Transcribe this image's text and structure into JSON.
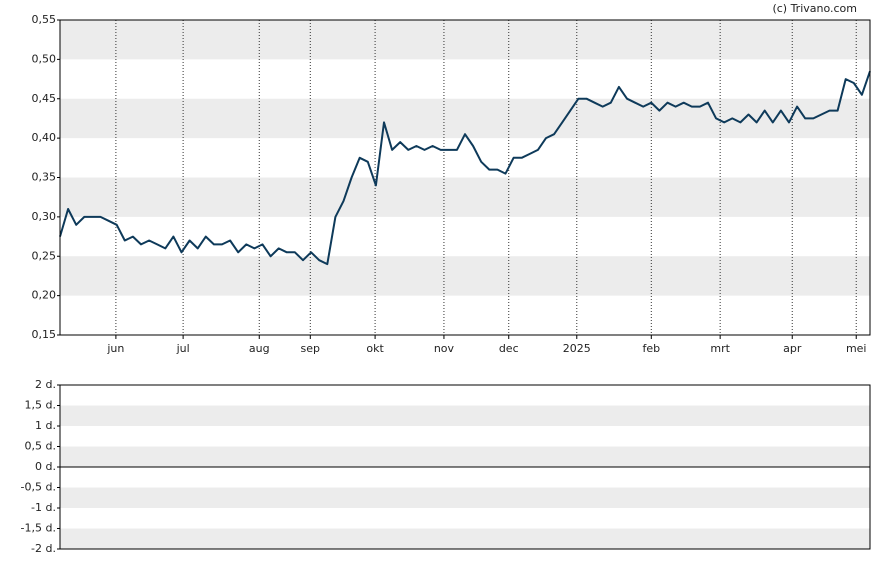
{
  "credit": "(c) Trivano.com",
  "chart_data": [
    {
      "type": "line",
      "xlim": [
        0,
        100
      ],
      "xticks": [
        {
          "value": 6.9,
          "label": "jun"
        },
        {
          "value": 15.2,
          "label": "jul"
        },
        {
          "value": 24.6,
          "label": "aug"
        },
        {
          "value": 30.9,
          "label": "sep"
        },
        {
          "value": 38.9,
          "label": "okt"
        },
        {
          "value": 47.4,
          "label": "nov"
        },
        {
          "value": 55.4,
          "label": "dec"
        },
        {
          "value": 63.8,
          "label": "2025"
        },
        {
          "value": 73,
          "label": "feb"
        },
        {
          "value": 81.5,
          "label": "mrt"
        },
        {
          "value": 90.4,
          "label": "apr"
        },
        {
          "value": 98.3,
          "label": "mei"
        }
      ],
      "ylim": [
        0.15,
        0.55
      ],
      "yticks": [
        {
          "value": 0.15,
          "label": "0,15"
        },
        {
          "value": 0.2,
          "label": "0,20"
        },
        {
          "value": 0.25,
          "label": "0,25"
        },
        {
          "value": 0.3,
          "label": "0,30"
        },
        {
          "value": 0.35,
          "label": "0,35"
        },
        {
          "value": 0.4,
          "label": "0,40"
        },
        {
          "value": 0.45,
          "label": "0,45"
        },
        {
          "value": 0.5,
          "label": "0,50"
        },
        {
          "value": 0.55,
          "label": "0,55"
        }
      ],
      "series": [
        {
          "color": "#0e3a5a",
          "values": [
            0.275,
            0.31,
            0.29,
            0.3,
            0.3,
            0.3,
            0.295,
            0.29,
            0.27,
            0.275,
            0.265,
            0.27,
            0.265,
            0.26,
            0.275,
            0.255,
            0.27,
            0.26,
            0.275,
            0.265,
            0.265,
            0.27,
            0.255,
            0.265,
            0.26,
            0.265,
            0.25,
            0.26,
            0.255,
            0.255,
            0.245,
            0.255,
            0.245,
            0.24,
            0.3,
            0.32,
            0.35,
            0.375,
            0.37,
            0.34,
            0.42,
            0.385,
            0.395,
            0.385,
            0.39,
            0.385,
            0.39,
            0.385,
            0.385,
            0.385,
            0.405,
            0.39,
            0.37,
            0.36,
            0.36,
            0.355,
            0.375,
            0.375,
            0.38,
            0.385,
            0.4,
            0.405,
            0.42,
            0.435,
            0.45,
            0.45,
            0.445,
            0.44,
            0.445,
            0.465,
            0.45,
            0.445,
            0.44,
            0.445,
            0.435,
            0.445,
            0.44,
            0.445,
            0.44,
            0.44,
            0.445,
            0.425,
            0.42,
            0.425,
            0.42,
            0.43,
            0.42,
            0.435,
            0.42,
            0.435,
            0.42,
            0.44,
            0.425,
            0.425,
            0.43,
            0.435,
            0.435,
            0.475,
            0.47,
            0.455,
            0.485
          ]
        }
      ]
    },
    {
      "type": "line",
      "ylim": [
        -2,
        2
      ],
      "yticks": [
        {
          "value": 2,
          "label": "2 d."
        },
        {
          "value": 1.5,
          "label": "1,5 d."
        },
        {
          "value": 1,
          "label": "1 d."
        },
        {
          "value": 0.5,
          "label": "0,5 d."
        },
        {
          "value": 0,
          "label": "0 d."
        },
        {
          "value": -0.5,
          "label": "-0,5 d."
        },
        {
          "value": -1,
          "label": "-1 d."
        },
        {
          "value": -1.5,
          "label": "-1,5 d."
        },
        {
          "value": -2,
          "label": "-2 d."
        }
      ]
    }
  ]
}
